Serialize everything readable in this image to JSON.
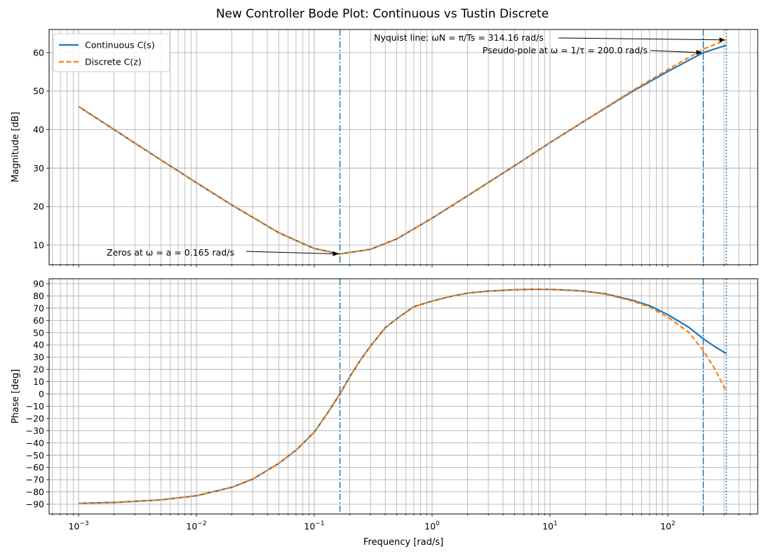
{
  "title": "New Controller Bode Plot: Continuous vs Tustin Discrete",
  "colors": {
    "continuous": "#1f77b4",
    "discrete": "#ff7f0e",
    "grid": "#b0b0b0",
    "marker": "#1f77b4"
  },
  "chart_data": [
    {
      "type": "line",
      "panel": "magnitude",
      "xscale": "log",
      "xlim": [
        0.000562,
        579
      ],
      "ylim": [
        4.9,
        66.0
      ],
      "xlabel": "",
      "ylabel": "Magnitude [dB]",
      "yticks": [
        10,
        20,
        30,
        40,
        50,
        60
      ],
      "ytick_labels": [
        "10",
        "20",
        "30",
        "40",
        "50",
        "60"
      ],
      "grid": true,
      "legend": {
        "placement": "top-left",
        "entries": [
          "Continuous C(s)",
          "Discrete C(z)"
        ]
      },
      "series": [
        {
          "name": "Continuous C(s)",
          "style": "solid",
          "x": [
            0.001,
            0.002,
            0.005,
            0.01,
            0.02,
            0.05,
            0.1,
            0.165,
            0.3,
            0.5,
            1,
            2,
            5,
            10,
            20,
            50,
            100,
            200,
            314.16
          ],
          "y": [
            46.0,
            40.0,
            32.1,
            26.2,
            20.4,
            13.2,
            9.1,
            7.7,
            8.9,
            11.6,
            17.0,
            22.8,
            30.6,
            36.6,
            42.4,
            49.9,
            55.1,
            60.0,
            61.9
          ]
        },
        {
          "name": "Discrete C(z)",
          "style": "dashed",
          "x": [
            0.001,
            0.002,
            0.005,
            0.01,
            0.02,
            0.05,
            0.1,
            0.165,
            0.3,
            0.5,
            1,
            2,
            5,
            10,
            20,
            50,
            100,
            200,
            314.16
          ],
          "y": [
            46.0,
            40.0,
            32.1,
            26.2,
            20.4,
            13.2,
            9.1,
            7.7,
            8.9,
            11.6,
            17.0,
            22.8,
            30.6,
            36.6,
            42.4,
            50.1,
            55.6,
            60.9,
            63.3
          ]
        }
      ],
      "annotations": [
        {
          "text": "Zeros at ω = a = 0.165 rad/s",
          "target": [
            0.165,
            7.7
          ]
        },
        {
          "text": "Nyquist line: ωN = π/Ts = 314.16 rad/s",
          "target": [
            314.16,
            63.3
          ]
        },
        {
          "text": "Pseudo-pole at ω = 1/τ = 200.0 rad/s",
          "target": [
            200,
            60.0
          ]
        }
      ]
    },
    {
      "type": "line",
      "panel": "phase",
      "xscale": "log",
      "xlim": [
        0.000562,
        579
      ],
      "ylim": [
        -98.0,
        94.0
      ],
      "xlabel": "Frequency [rad/s]",
      "ylabel": "Phase [deg]",
      "yticks": [
        -90,
        -80,
        -70,
        -60,
        -50,
        -40,
        -30,
        -20,
        -10,
        0,
        10,
        20,
        30,
        40,
        50,
        60,
        70,
        80,
        90
      ],
      "ytick_labels": [
        "−90",
        "−80",
        "−70",
        "−60",
        "−50",
        "−40",
        "−30",
        "−20",
        "−10",
        "0",
        "10",
        "20",
        "30",
        "40",
        "50",
        "60",
        "70",
        "80",
        "90"
      ],
      "xticks": [
        0.001,
        0.01,
        0.1,
        1,
        10,
        100
      ],
      "xtick_labels": [
        {
          "base": "10",
          "exp": "−3"
        },
        {
          "base": "10",
          "exp": "−2"
        },
        {
          "base": "10",
          "exp": "−1"
        },
        {
          "base": "10",
          "exp": "0"
        },
        {
          "base": "10",
          "exp": "1"
        },
        {
          "base": "10",
          "exp": "2"
        }
      ],
      "grid": true,
      "series": [
        {
          "name": "Continuous C(s)",
          "style": "solid",
          "x": [
            0.001,
            0.002,
            0.005,
            0.01,
            0.02,
            0.03,
            0.05,
            0.07,
            0.1,
            0.13,
            0.165,
            0.2,
            0.25,
            0.3,
            0.4,
            0.5,
            0.7,
            1,
            1.5,
            2,
            3,
            5,
            7,
            10,
            15,
            20,
            30,
            50,
            70,
            100,
            150,
            200,
            250,
            314.16
          ],
          "y": [
            -89.3,
            -88.6,
            -86.5,
            -83.1,
            -76.2,
            -69.6,
            -56.7,
            -45.9,
            -31.2,
            -15.4,
            0,
            14.0,
            28.5,
            39.0,
            54.0,
            61.3,
            71.2,
            75.8,
            80.0,
            82.3,
            83.9,
            85.0,
            85.4,
            85.3,
            84.6,
            83.8,
            81.6,
            76.5,
            72.0,
            64.7,
            54.5,
            45.0,
            38.6,
            32.9
          ]
        },
        {
          "name": "Discrete C(z)",
          "style": "dashed",
          "x": [
            0.001,
            0.002,
            0.005,
            0.01,
            0.02,
            0.03,
            0.05,
            0.07,
            0.1,
            0.13,
            0.165,
            0.2,
            0.25,
            0.3,
            0.4,
            0.5,
            0.7,
            1,
            1.5,
            2,
            3,
            5,
            7,
            10,
            15,
            20,
            30,
            50,
            70,
            100,
            150,
            200,
            250,
            314.16
          ],
          "y": [
            -89.3,
            -88.6,
            -86.5,
            -83.1,
            -76.2,
            -69.6,
            -56.7,
            -45.9,
            -31.2,
            -15.4,
            0,
            14.0,
            28.5,
            39.0,
            54.0,
            61.3,
            71.2,
            75.8,
            80.0,
            82.3,
            83.9,
            85.0,
            85.4,
            85.3,
            84.5,
            83.7,
            81.3,
            75.8,
            70.9,
            62.7,
            50.5,
            35.3,
            20.5,
            2.0
          ]
        }
      ]
    }
  ],
  "reference_lines": [
    {
      "name": "zero-marker-line",
      "x": 0.165,
      "style": "dashdot"
    },
    {
      "name": "pseudo-pole-marker-line",
      "x": 200,
      "style": "dashdot"
    },
    {
      "name": "nyquist-marker-line",
      "x": 314.16,
      "style": "dotted"
    }
  ]
}
